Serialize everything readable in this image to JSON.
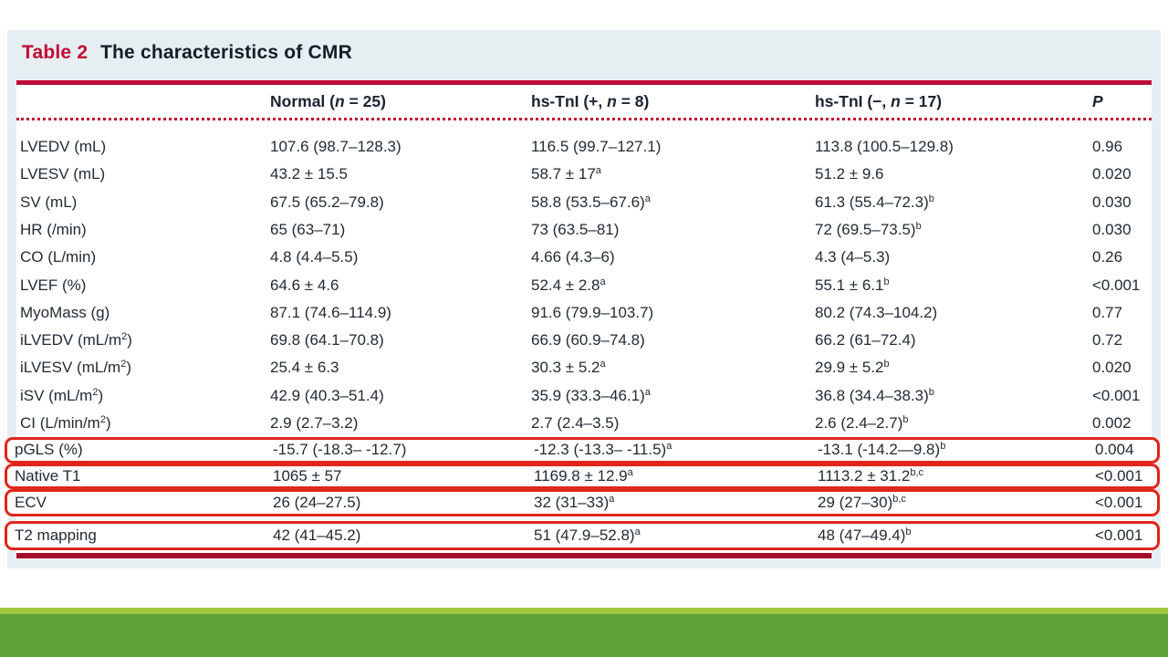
{
  "title": {
    "label": "Table 2",
    "text": "The characteristics of CMR"
  },
  "colors": {
    "crimson": "#c10a35",
    "ruledark": "#a50d2d",
    "boxred": "#e0251a",
    "panelbg": "#e6eef1",
    "text": "#232b35",
    "greendark": "#5fa339",
    "greenlight": "#a2c640"
  },
  "table": {
    "header": [
      [
        {
          "t": "Normal ("
        },
        {
          "t": "n",
          "i": true
        },
        {
          "t": " = 25)"
        }
      ],
      [
        {
          "t": "hs-TnI (+, "
        },
        {
          "t": "n",
          "i": true
        },
        {
          "t": " = 8)"
        }
      ],
      [
        {
          "t": "hs-TnI (−, "
        },
        {
          "t": "n",
          "i": true
        },
        {
          "t": " = 17)"
        }
      ],
      [
        {
          "t": "P",
          "i": true
        }
      ]
    ],
    "rows": [
      {
        "highlight": false,
        "label": [
          {
            "t": "LVEDV (mL)"
          }
        ],
        "cells": [
          [
            {
              "t": "107.6 (98.7–128.3)"
            }
          ],
          [
            {
              "t": "116.5 (99.7–127.1)"
            }
          ],
          [
            {
              "t": "113.8 (100.5–129.8)"
            }
          ],
          [
            {
              "t": "0.96"
            }
          ]
        ]
      },
      {
        "highlight": false,
        "label": [
          {
            "t": "LVESV (mL)"
          }
        ],
        "cells": [
          [
            {
              "t": "43.2 ± 15.5"
            }
          ],
          [
            {
              "t": "58.7 ± 17"
            },
            {
              "t": "a",
              "s": true
            }
          ],
          [
            {
              "t": "51.2 ± 9.6"
            }
          ],
          [
            {
              "t": "0.020"
            }
          ]
        ]
      },
      {
        "highlight": false,
        "label": [
          {
            "t": "SV (mL)"
          }
        ],
        "cells": [
          [
            {
              "t": "67.5 (65.2–79.8)"
            }
          ],
          [
            {
              "t": "58.8 (53.5–67.6)"
            },
            {
              "t": "a",
              "s": true
            }
          ],
          [
            {
              "t": "61.3 (55.4–72.3)"
            },
            {
              "t": "b",
              "s": true
            }
          ],
          [
            {
              "t": "0.030"
            }
          ]
        ]
      },
      {
        "highlight": false,
        "label": [
          {
            "t": "HR (/min)"
          }
        ],
        "cells": [
          [
            {
              "t": "65 (63–71)"
            }
          ],
          [
            {
              "t": "73 (63.5–81)"
            }
          ],
          [
            {
              "t": "72 (69.5–73.5)"
            },
            {
              "t": "b",
              "s": true
            }
          ],
          [
            {
              "t": "0.030"
            }
          ]
        ]
      },
      {
        "highlight": false,
        "label": [
          {
            "t": "CO (L/min)"
          }
        ],
        "cells": [
          [
            {
              "t": "4.8 (4.4–5.5)"
            }
          ],
          [
            {
              "t": "4.66 (4.3–6)"
            }
          ],
          [
            {
              "t": "4.3 (4–5.3)"
            }
          ],
          [
            {
              "t": "0.26"
            }
          ]
        ]
      },
      {
        "highlight": false,
        "label": [
          {
            "t": "LVEF (%)"
          }
        ],
        "cells": [
          [
            {
              "t": "64.6 ± 4.6"
            }
          ],
          [
            {
              "t": "52.4 ± 2.8"
            },
            {
              "t": "a",
              "s": true
            }
          ],
          [
            {
              "t": "55.1 ± 6.1"
            },
            {
              "t": "b",
              "s": true
            }
          ],
          [
            {
              "t": "<0.001"
            }
          ]
        ]
      },
      {
        "highlight": false,
        "label": [
          {
            "t": "MyoMass (g)"
          }
        ],
        "cells": [
          [
            {
              "t": "87.1 (74.6–114.9)"
            }
          ],
          [
            {
              "t": "91.6 (79.9–103.7)"
            }
          ],
          [
            {
              "t": "80.2 (74.3–104.2)"
            }
          ],
          [
            {
              "t": "0.77"
            }
          ]
        ]
      },
      {
        "highlight": false,
        "label": [
          {
            "t": "iLVEDV (mL/m"
          },
          {
            "t": "2",
            "s": true
          },
          {
            "t": ")"
          }
        ],
        "cells": [
          [
            {
              "t": "69.8 (64.1–70.8)"
            }
          ],
          [
            {
              "t": "66.9 (60.9–74.8)"
            }
          ],
          [
            {
              "t": "66.2 (61–72.4)"
            }
          ],
          [
            {
              "t": "0.72"
            }
          ]
        ]
      },
      {
        "highlight": false,
        "label": [
          {
            "t": "iLVESV (mL/m"
          },
          {
            "t": "2",
            "s": true
          },
          {
            "t": ")"
          }
        ],
        "cells": [
          [
            {
              "t": "25.4 ± 6.3"
            }
          ],
          [
            {
              "t": "30.3 ± 5.2"
            },
            {
              "t": "a",
              "s": true
            }
          ],
          [
            {
              "t": "29.9 ± 5.2"
            },
            {
              "t": "b",
              "s": true
            }
          ],
          [
            {
              "t": "0.020"
            }
          ]
        ]
      },
      {
        "highlight": false,
        "label": [
          {
            "t": "iSV (mL/m"
          },
          {
            "t": "2",
            "s": true
          },
          {
            "t": ")"
          }
        ],
        "cells": [
          [
            {
              "t": "42.9 (40.3–51.4)"
            }
          ],
          [
            {
              "t": "35.9 (33.3–46.1)"
            },
            {
              "t": "a",
              "s": true
            }
          ],
          [
            {
              "t": "36.8 (34.4–38.3)"
            },
            {
              "t": "b",
              "s": true
            }
          ],
          [
            {
              "t": "<0.001"
            }
          ]
        ]
      },
      {
        "highlight": false,
        "label": [
          {
            "t": "CI (L/min/m"
          },
          {
            "t": "2",
            "s": true
          },
          {
            "t": ")"
          }
        ],
        "cells": [
          [
            {
              "t": "2.9 (2.7–3.2)"
            }
          ],
          [
            {
              "t": "2.7 (2.4–3.5)"
            }
          ],
          [
            {
              "t": "2.6 (2.4–2.7)"
            },
            {
              "t": "b",
              "s": true
            }
          ],
          [
            {
              "t": "0.002"
            }
          ]
        ]
      },
      {
        "highlight": true,
        "label": [
          {
            "t": "pGLS (%)"
          }
        ],
        "cells": [
          [
            {
              "t": "-15.7 (-18.3– -12.7)"
            }
          ],
          [
            {
              "t": "-12.3 (-13.3– -11.5)"
            },
            {
              "t": "a",
              "s": true
            }
          ],
          [
            {
              "t": "-13.1 (-14.2—9.8)"
            },
            {
              "t": "b",
              "s": true
            }
          ],
          [
            {
              "t": "0.004"
            }
          ]
        ]
      },
      {
        "highlight": true,
        "label": [
          {
            "t": "Native T1"
          }
        ],
        "cells": [
          [
            {
              "t": "1065 ± 57"
            }
          ],
          [
            {
              "t": "1169.8 ± 12.9"
            },
            {
              "t": "a",
              "s": true
            }
          ],
          [
            {
              "t": "1113.2 ± 31.2"
            },
            {
              "t": "b,c",
              "s": true
            }
          ],
          [
            {
              "t": "<0.001"
            }
          ]
        ]
      },
      {
        "highlight": true,
        "label": [
          {
            "t": "ECV"
          }
        ],
        "cells": [
          [
            {
              "t": "26 (24–27.5)"
            }
          ],
          [
            {
              "t": "32 (31–33)"
            },
            {
              "t": "a",
              "s": true
            }
          ],
          [
            {
              "t": "29 (27–30)"
            },
            {
              "t": "b,c",
              "s": true
            }
          ],
          [
            {
              "t": "<0.001"
            }
          ]
        ]
      },
      {
        "highlight": true,
        "label": [
          {
            "t": "T2 mapping"
          }
        ],
        "cells": [
          [
            {
              "t": "42 (41–45.2)"
            }
          ],
          [
            {
              "t": "51 (47.9–52.8)"
            },
            {
              "t": "a",
              "s": true
            }
          ],
          [
            {
              "t": "48 (47–49.4)"
            },
            {
              "t": "b",
              "s": true
            }
          ],
          [
            {
              "t": "<0.001"
            }
          ]
        ]
      }
    ]
  }
}
